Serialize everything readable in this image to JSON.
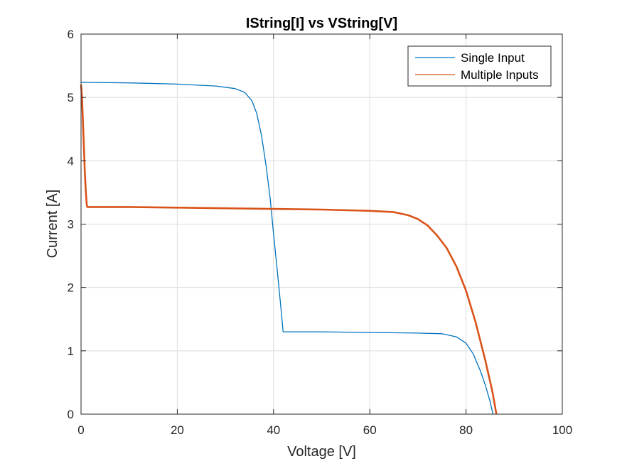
{
  "chart_data": {
    "type": "line",
    "title": "IString[I] vs VString[V]",
    "xlabel": "Voltage [V]",
    "ylabel": "Current [A]",
    "xlim": [
      0,
      100
    ],
    "ylim": [
      0,
      6
    ],
    "xticks": [
      0,
      20,
      40,
      60,
      80,
      100
    ],
    "yticks": [
      0,
      1,
      2,
      3,
      4,
      5,
      6
    ],
    "xtick_labels": [
      "0",
      "20",
      "40",
      "60",
      "80",
      "100"
    ],
    "ytick_labels": [
      "0",
      "1",
      "2",
      "3",
      "4",
      "5",
      "6"
    ],
    "grid": true,
    "legend": "top-right",
    "series": [
      {
        "name": "Single Input",
        "color": "#0072BD",
        "x": [
          0,
          10,
          20,
          28,
          32,
          34,
          35.5,
          36.5,
          37.5,
          38.5,
          39.3,
          40,
          40.8,
          41.5,
          42,
          42.2,
          50,
          60,
          70,
          75,
          78,
          80,
          81.5,
          83,
          84,
          85,
          85.6
        ],
        "y": [
          5.24,
          5.23,
          5.21,
          5.18,
          5.14,
          5.08,
          4.95,
          4.75,
          4.4,
          3.9,
          3.4,
          2.85,
          2.25,
          1.7,
          1.3,
          1.3,
          1.3,
          1.29,
          1.28,
          1.27,
          1.22,
          1.12,
          0.95,
          0.68,
          0.46,
          0.2,
          0.0
        ]
      },
      {
        "name": "Multiple Inputs",
        "color": "#D95319",
        "x": [
          0,
          0.2,
          0.4,
          0.6,
          0.8,
          1.0,
          1.2,
          1.3,
          10,
          20,
          30,
          40,
          50,
          60,
          65,
          68,
          70,
          72,
          74,
          76,
          78,
          80,
          82,
          84,
          85.5,
          86.3
        ],
        "y": [
          5.2,
          5.0,
          4.6,
          4.2,
          3.8,
          3.5,
          3.3,
          3.27,
          3.27,
          3.26,
          3.25,
          3.24,
          3.23,
          3.21,
          3.19,
          3.14,
          3.08,
          2.98,
          2.82,
          2.62,
          2.33,
          1.95,
          1.45,
          0.85,
          0.35,
          0.0
        ]
      }
    ]
  }
}
